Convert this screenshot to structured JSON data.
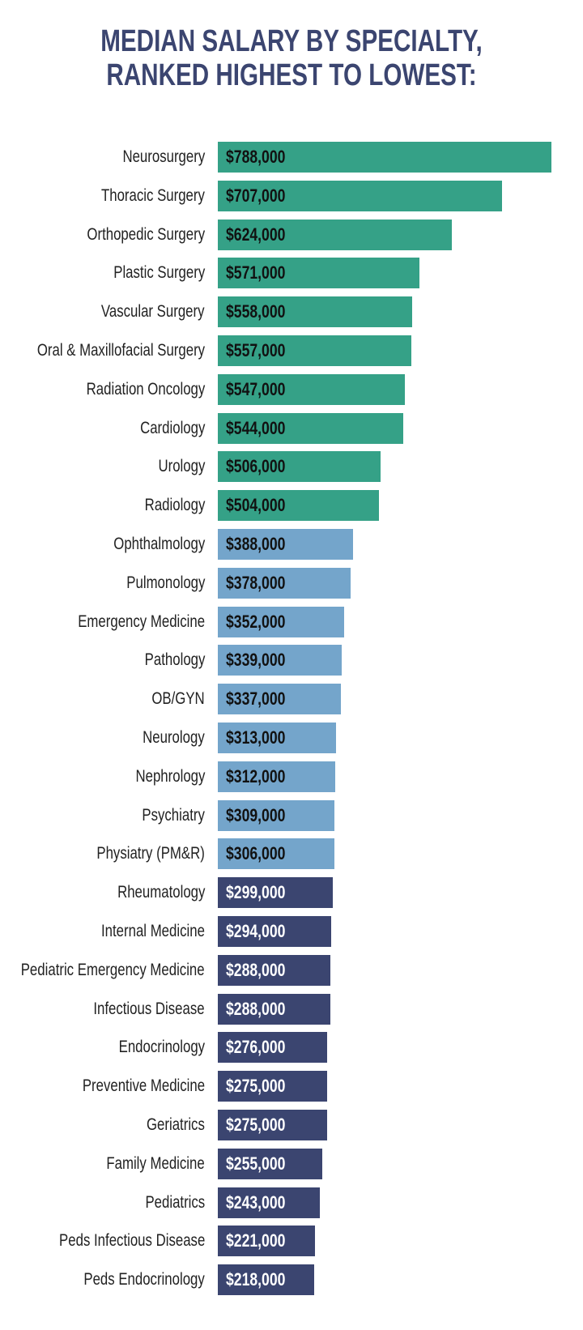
{
  "chart_data": {
    "type": "bar",
    "orientation": "horizontal",
    "title": [
      "MEDIAN SALARY BY SPECIALTY,",
      "RANKED HIGHEST TO LOWEST:"
    ],
    "grid": false,
    "categories": [
      "Neurosurgery",
      "Thoracic Surgery",
      "Orthopedic Surgery",
      "Plastic Surgery",
      "Vascular Surgery",
      "Oral & Maxillofacial Surgery",
      "Radiation Oncology",
      "Cardiology",
      "Urology",
      "Radiology",
      "Ophthalmology",
      "Pulmonology",
      "Emergency Medicine",
      "Pathology",
      "OB/GYN",
      "Neurology",
      "Nephrology",
      "Psychiatry",
      "Physiatry (PM&R)",
      "Rheumatology",
      "Internal Medicine",
      "Pediatric Emergency Medicine",
      "Infectious Disease",
      "Endocrinology",
      "Preventive Medicine",
      "Geriatrics",
      "Family Medicine",
      "Pediatrics",
      "Peds Infectious Disease",
      "Peds Endocrinology"
    ],
    "values": [
      788000,
      707000,
      624000,
      571000,
      558000,
      557000,
      547000,
      544000,
      506000,
      504000,
      388000,
      378000,
      352000,
      339000,
      337000,
      313000,
      312000,
      309000,
      306000,
      299000,
      294000,
      288000,
      288000,
      276000,
      275000,
      275000,
      255000,
      243000,
      221000,
      218000
    ],
    "labels": [
      "$788,000",
      "$707,000",
      "$624,000",
      "$571,000",
      "$558,000",
      "$557,000",
      "$547,000",
      "$544,000",
      "$506,000",
      "$504,000",
      "$388,000",
      "$378,000",
      "$352,000",
      "$339,000",
      "$337,000",
      "$313,000",
      "$312,000",
      "$309,000",
      "$306,000",
      "$299,000",
      "$294,000",
      "$288,000",
      "$288,000",
      "$276,000",
      "$275,000",
      "$275,000",
      "$255,000",
      "$243,000",
      "$221,000",
      "$218,000"
    ],
    "groups": [
      {
        "count": 10,
        "color": "#35a187",
        "label_color": "#111111"
      },
      {
        "count": 9,
        "color": "#74a5cb",
        "label_color": "#111111"
      },
      {
        "count": 11,
        "color": "#3b4570",
        "label_color": "#ffffff"
      }
    ],
    "title_color": "#3b4570"
  }
}
